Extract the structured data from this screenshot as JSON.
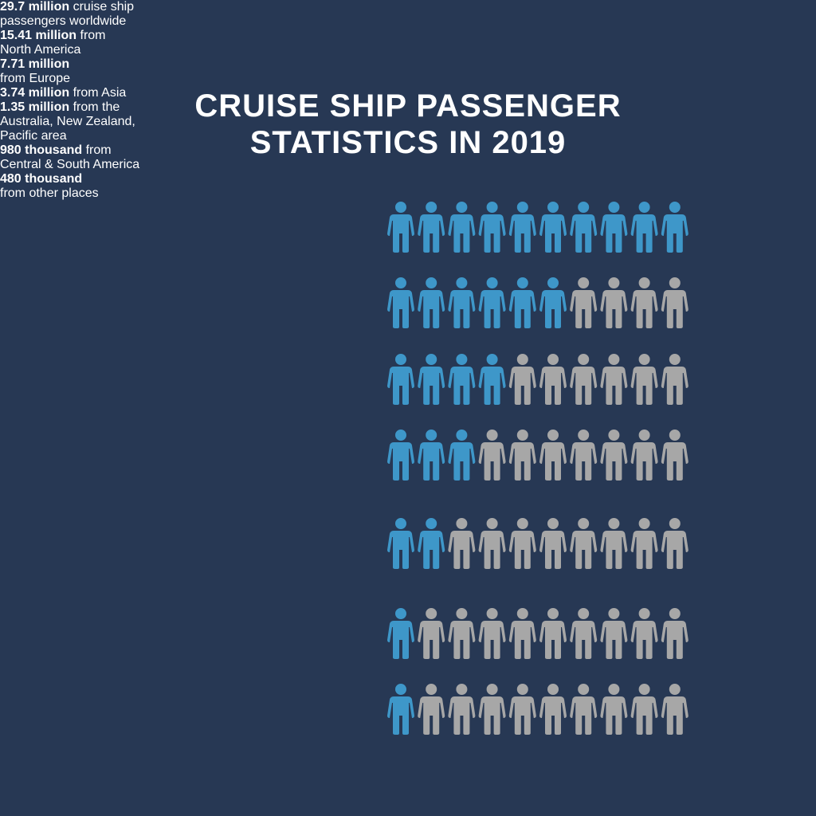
{
  "title": [
    "CRUISE SHIP PASSENGER",
    "STATISTICS IN 2019"
  ],
  "icons_total": 10,
  "colors": {
    "background": "#273854",
    "filled": "#3e97c9",
    "empty": "#a7a7a7",
    "text": "#ffffff"
  },
  "rows": [
    {
      "bold": "29.7 million",
      "inline": true,
      "rest": [
        "cruise ship",
        "passengers worldwide"
      ],
      "filled": 10
    },
    {
      "bold": "15.41 million",
      "inline": true,
      "rest": [
        "from",
        "North America"
      ],
      "filled": 6
    },
    {
      "bold": "7.71 million",
      "inline": false,
      "rest": [
        "from Europe"
      ],
      "filled": 4
    },
    {
      "bold": "3.74 million",
      "inline": true,
      "rest": [
        "from Asia"
      ],
      "filled": 3
    },
    {
      "bold": "1.35 million",
      "inline": true,
      "rest": [
        "from the",
        "Australia, New Zealand,",
        "Pacific area"
      ],
      "filled": 2
    },
    {
      "bold": "980 thousand",
      "inline": true,
      "rest": [
        "from",
        "Central & South America"
      ],
      "filled": 1
    },
    {
      "bold": "480 thousand",
      "inline": false,
      "rest": [
        "from other places"
      ],
      "filled": 1
    }
  ]
}
